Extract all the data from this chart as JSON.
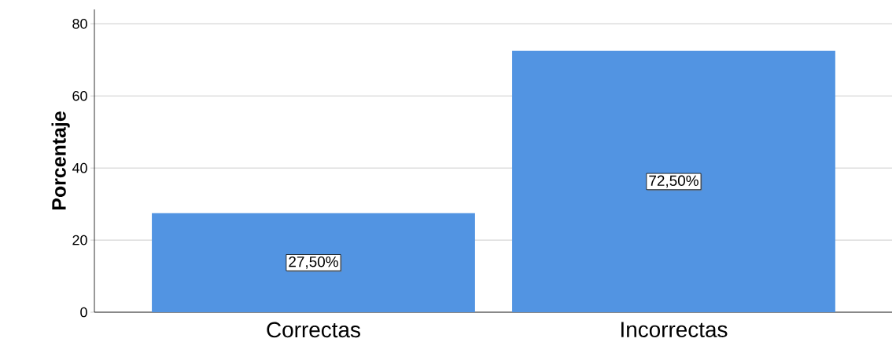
{
  "chart_data": {
    "type": "bar",
    "ylabel": "Porcentaje",
    "categories": [
      "Correctas",
      "Incorrectas"
    ],
    "values": [
      27.5,
      72.5
    ],
    "value_labels": [
      "27,50%",
      "72,50%"
    ],
    "color": "#5294e2",
    "ylim": [
      0,
      84
    ],
    "yticks": [
      0,
      20,
      40,
      60,
      80
    ],
    "grid": "y"
  }
}
